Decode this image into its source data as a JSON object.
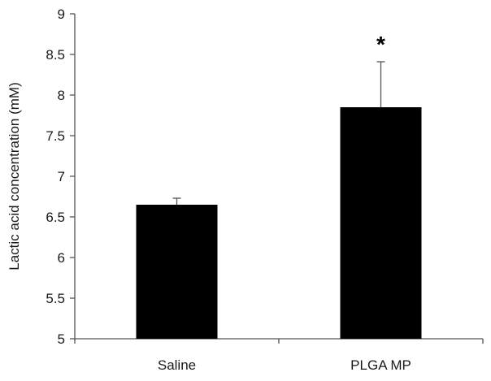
{
  "chart_data": {
    "type": "bar",
    "title": "",
    "xlabel": "",
    "ylabel": "Lactic acid concentration (mM)",
    "ylim": [
      5,
      9
    ],
    "yticks": [
      "5",
      "5.5",
      "6",
      "6.5",
      "7",
      "7.5",
      "8",
      "8.5",
      "9"
    ],
    "grid": false,
    "legend": "none",
    "categories": [
      "Saline",
      "PLGA MP"
    ],
    "series": [
      {
        "values": [
          6.65,
          7.85
        ],
        "error": [
          0.08,
          0.56
        ],
        "color": "#000000"
      }
    ],
    "annotations": [
      {
        "category": "PLGA MP",
        "text": "*"
      }
    ],
    "colors": {
      "bar": "#000000",
      "axis": "#555555",
      "text": "#1a1a1a"
    }
  }
}
